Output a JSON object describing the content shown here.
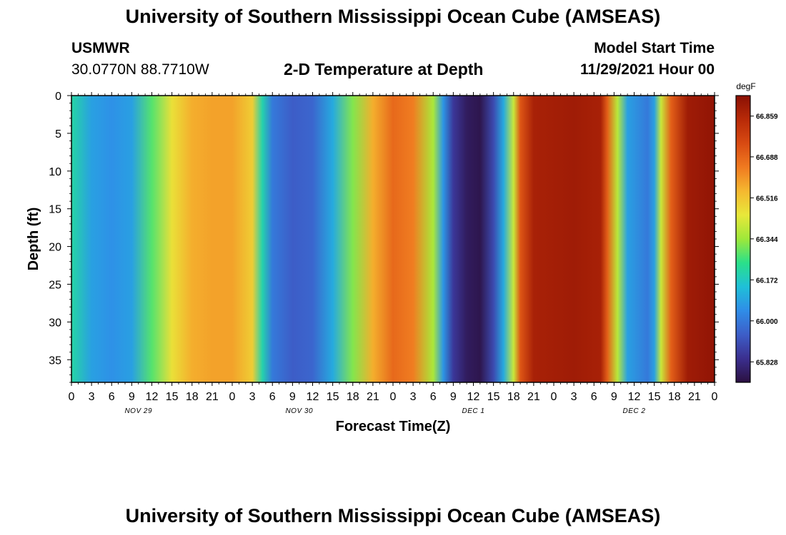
{
  "header": {
    "title": "University of Southern Mississippi Ocean Cube (AMSEAS)",
    "station": "USMWR",
    "coords": "30.0770N  88.7710W",
    "subtitle": "2-D Temperature at Depth",
    "model_start_label": "Model Start Time",
    "model_start_value": "11/29/2021 Hour 00"
  },
  "footer": {
    "title": "University of Southern Mississippi Ocean Cube (AMSEAS)"
  },
  "chart_data": {
    "type": "heatmap",
    "title": "2-D Temperature at Depth",
    "xlabel": "Forecast Time(Z)",
    "ylabel": "Depth (ft)",
    "x_hours": [
      0,
      96
    ],
    "ylim": [
      38,
      0
    ],
    "y_ticks": [
      "0",
      "5",
      "10",
      "15",
      "20",
      "25",
      "30",
      "35"
    ],
    "x_tick_labels": [
      "0",
      "3",
      "6",
      "9",
      "12",
      "15",
      "18",
      "21",
      "0",
      "3",
      "6",
      "9",
      "12",
      "15",
      "18",
      "21",
      "0",
      "3",
      "6",
      "9",
      "12",
      "15",
      "18",
      "21",
      "0",
      "3",
      "6",
      "9",
      "12",
      "15",
      "18",
      "21",
      "0"
    ],
    "date_labels": [
      {
        "label": "NOV 29",
        "hour": 10
      },
      {
        "label": "NOV 30",
        "hour": 34
      },
      {
        "label": "DEC 1",
        "hour": 60
      },
      {
        "label": "DEC 2",
        "hour": 84
      }
    ],
    "colorbar": {
      "unit": "degF",
      "range": [
        65.742,
        66.945
      ],
      "ticks": [
        "66.859",
        "66.688",
        "66.516",
        "66.344",
        "66.172",
        "66.000",
        "65.828"
      ],
      "colors": [
        "#2b1040",
        "#3b2f8f",
        "#3d5ec8",
        "#2f8de8",
        "#1fc0d8",
        "#2ae08a",
        "#9ee83a",
        "#e8e83a",
        "#f5b830",
        "#f07a20",
        "#d84a12",
        "#b82a08",
        "#8a1004"
      ]
    },
    "surface_profile_degF": [
      {
        "hour": 0,
        "value": 66.21
      },
      {
        "hour": 3,
        "value": 66.08
      },
      {
        "hour": 6,
        "value": 66.05
      },
      {
        "hour": 9,
        "value": 66.08
      },
      {
        "hour": 12,
        "value": 66.28
      },
      {
        "hour": 15,
        "value": 66.46
      },
      {
        "hour": 18,
        "value": 66.56
      },
      {
        "hour": 21,
        "value": 66.58
      },
      {
        "hour": 24,
        "value": 66.58
      },
      {
        "hour": 27,
        "value": 66.5
      },
      {
        "hour": 28.5,
        "value": 66.2
      },
      {
        "hour": 30,
        "value": 66.0
      },
      {
        "hour": 33,
        "value": 65.94
      },
      {
        "hour": 36,
        "value": 65.96
      },
      {
        "hour": 39,
        "value": 66.1
      },
      {
        "hour": 42,
        "value": 66.32
      },
      {
        "hour": 45,
        "value": 66.56
      },
      {
        "hour": 48,
        "value": 66.68
      },
      {
        "hour": 51,
        "value": 66.64
      },
      {
        "hour": 54,
        "value": 66.36
      },
      {
        "hour": 55.5,
        "value": 66.06
      },
      {
        "hour": 57,
        "value": 65.86
      },
      {
        "hour": 59,
        "value": 65.78
      },
      {
        "hour": 61,
        "value": 65.76
      },
      {
        "hour": 63,
        "value": 65.9
      },
      {
        "hour": 64.5,
        "value": 66.1
      },
      {
        "hour": 66,
        "value": 66.4
      },
      {
        "hour": 67,
        "value": 66.72
      },
      {
        "hour": 69,
        "value": 66.88
      },
      {
        "hour": 75,
        "value": 66.9
      },
      {
        "hour": 79,
        "value": 66.88
      },
      {
        "hour": 80,
        "value": 66.7
      },
      {
        "hour": 81.5,
        "value": 66.38
      },
      {
        "hour": 83,
        "value": 66.08
      },
      {
        "hour": 86,
        "value": 66.0
      },
      {
        "hour": 87,
        "value": 66.08
      },
      {
        "hour": 88,
        "value": 66.4
      },
      {
        "hour": 89.5,
        "value": 66.7
      },
      {
        "hour": 92,
        "value": 66.9
      },
      {
        "hour": 96,
        "value": 66.93
      }
    ]
  }
}
